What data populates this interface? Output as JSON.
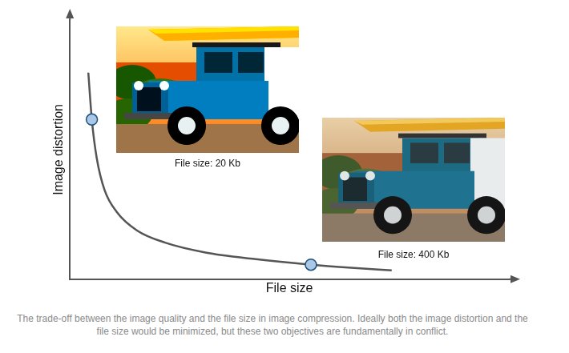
{
  "chart_data": {
    "type": "line",
    "x_label": "File size",
    "y_label": "Image distortion",
    "caption": "The trade-off between the image quality and the file size in image compression. Ideally both the image distortion and the file size would be minimized, but these two objectives are fundamentally in conflict.",
    "xlim": [
      0,
      100
    ],
    "ylim": [
      0,
      100
    ],
    "tick_labels": false,
    "grid": false,
    "series": [
      {
        "type": "line",
        "color": "#555555",
        "marker": "none",
        "x": [
          4.2,
          5.0,
          6.1,
          7.9,
          10.7,
          15.3,
          21.7,
          30.9,
          42.0,
          54.9,
          64.1,
          73.3
        ],
        "values": [
          79.7,
          61.6,
          46.9,
          34.4,
          25.9,
          18.8,
          14.1,
          10.3,
          7.8,
          5.6,
          4.4,
          3.4
        ]
      },
      {
        "type": "scatter",
        "color": "#a9c8e8",
        "marker": "circle",
        "x": [
          5.0,
          54.9
        ],
        "values": [
          61.6,
          5.6
        ],
        "annotations": [
          "File size: 20 Kb",
          "File size: 400 Kb"
        ]
      }
    ]
  }
}
